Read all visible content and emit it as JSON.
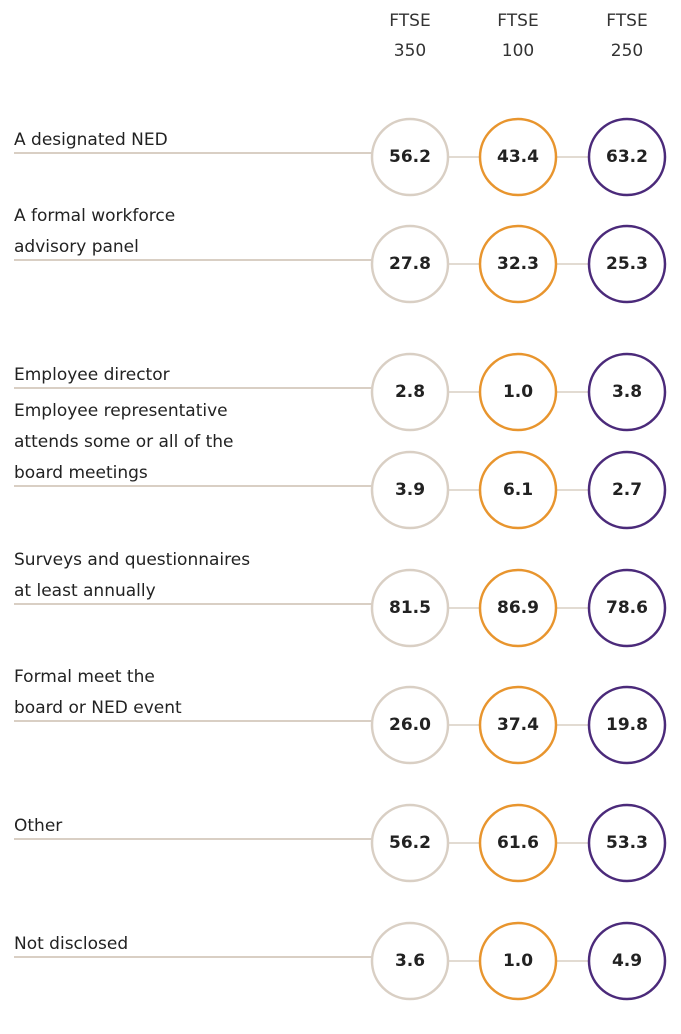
{
  "columns": [
    {
      "line1": "FTSE",
      "line2": "350",
      "color": "#d9cfc4"
    },
    {
      "line1": "FTSE",
      "line2": "100",
      "color": "#e8952e"
    },
    {
      "line1": "FTSE",
      "line2": "250",
      "color": "#4b2a7a"
    }
  ],
  "rows": [
    {
      "label": [
        "A designated NED"
      ],
      "values": [
        "56.2",
        "43.4",
        "63.2"
      ]
    },
    {
      "label": [
        "A formal workforce",
        "advisory panel"
      ],
      "values": [
        "27.8",
        "32.3",
        "25.3"
      ]
    },
    {
      "label": [
        "Employee director"
      ],
      "values": [
        "2.8",
        "1.0",
        "3.8"
      ]
    },
    {
      "label": [
        "Employee representative",
        "attends some or all of the",
        "board meetings"
      ],
      "values": [
        "3.9",
        "6.1",
        "2.7"
      ]
    },
    {
      "label": [
        "Surveys and questionnaires",
        "at least annually"
      ],
      "values": [
        "81.5",
        "86.9",
        "78.6"
      ]
    },
    {
      "label": [
        "Formal meet the",
        "board or NED event"
      ],
      "values": [
        "26.0",
        "37.4",
        "19.8"
      ]
    },
    {
      "label": [
        "Other"
      ],
      "values": [
        "56.2",
        "61.6",
        "53.3"
      ]
    },
    {
      "label": [
        "Not disclosed"
      ],
      "values": [
        "3.6",
        "1.0",
        "4.9"
      ]
    }
  ]
}
